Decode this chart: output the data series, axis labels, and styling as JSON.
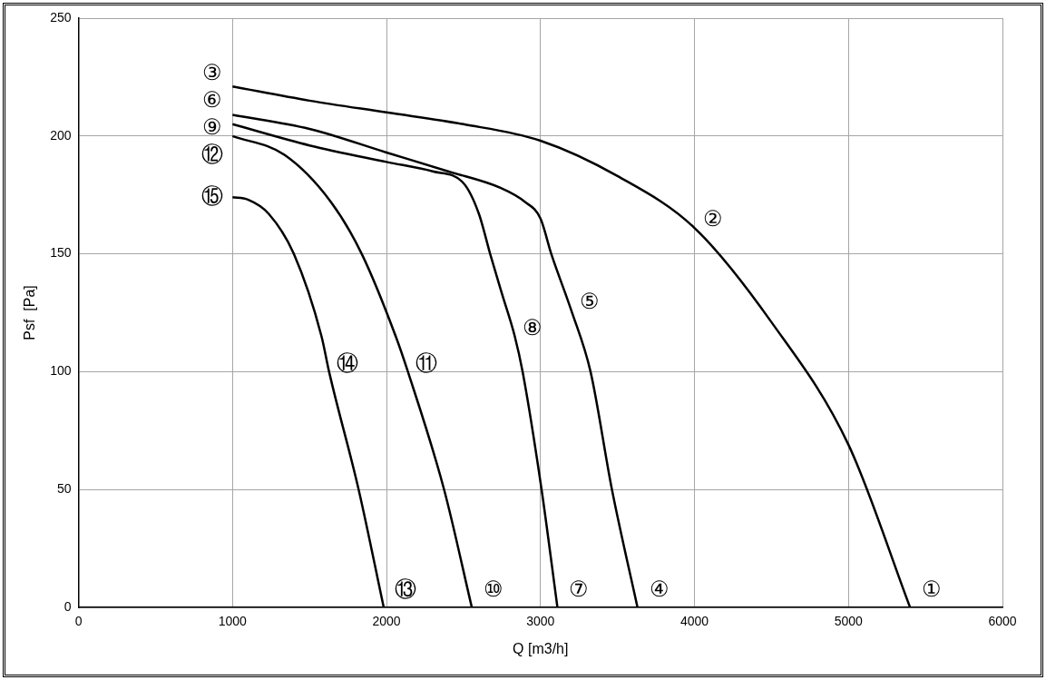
{
  "chart_data": {
    "type": "line",
    "xlabel": "Q [m3/h]",
    "ylabel": "Psf  [Pa]",
    "xlim": [
      0,
      6000
    ],
    "xticks": [
      0,
      1000,
      2000,
      3000,
      4000,
      5000,
      6000
    ],
    "ylim": [
      0,
      250
    ],
    "yticks": [
      0,
      50,
      100,
      150,
      200,
      250
    ],
    "grid": true,
    "marker": "none",
    "line_style": "solid",
    "series": [
      {
        "color": "#000000",
        "x": [
          1000,
          1500,
          2000,
          2500,
          3000,
          3500,
          4000,
          4500,
          5000,
          5400
        ],
        "values": [
          221,
          215,
          210,
          205,
          198,
          183,
          161,
          121,
          69,
          0
        ]
      },
      {
        "color": "#000000",
        "x": [
          1000,
          1500,
          2000,
          2400,
          2740,
          2900,
          3000,
          3070,
          3200,
          3325,
          3464,
          3630
        ],
        "values": [
          209,
          203,
          193,
          185,
          178,
          172,
          165,
          150,
          126,
          100,
          50,
          0
        ]
      },
      {
        "color": "#000000",
        "x": [
          1000,
          1500,
          2000,
          2300,
          2500,
          2600,
          2673,
          2750,
          2833,
          2884,
          3007,
          3110
        ],
        "values": [
          205,
          196,
          189,
          185,
          180,
          167,
          150,
          133,
          115,
          100,
          50,
          0
        ]
      },
      {
        "color": "#000000",
        "x": [
          1000,
          1337,
          1639,
          1839,
          2060,
          2139,
          2374,
          2554
        ],
        "values": [
          200,
          192,
          172,
          150,
          115,
          100,
          50,
          0
        ]
      },
      {
        "color": "#000000",
        "x": [
          1000,
          1100,
          1235,
          1398,
          1578,
          1627,
          1819,
          1982
        ],
        "values": [
          174,
          173,
          167,
          150,
          115,
          100,
          50,
          0
        ]
      }
    ],
    "annotations": [
      "①",
      "②",
      "③",
      "④",
      "⑤",
      "⑥",
      "⑦",
      "⑧",
      "⑨",
      "⑩",
      "⑪",
      "⑫",
      "⑬",
      "⑭",
      "⑮"
    ]
  }
}
